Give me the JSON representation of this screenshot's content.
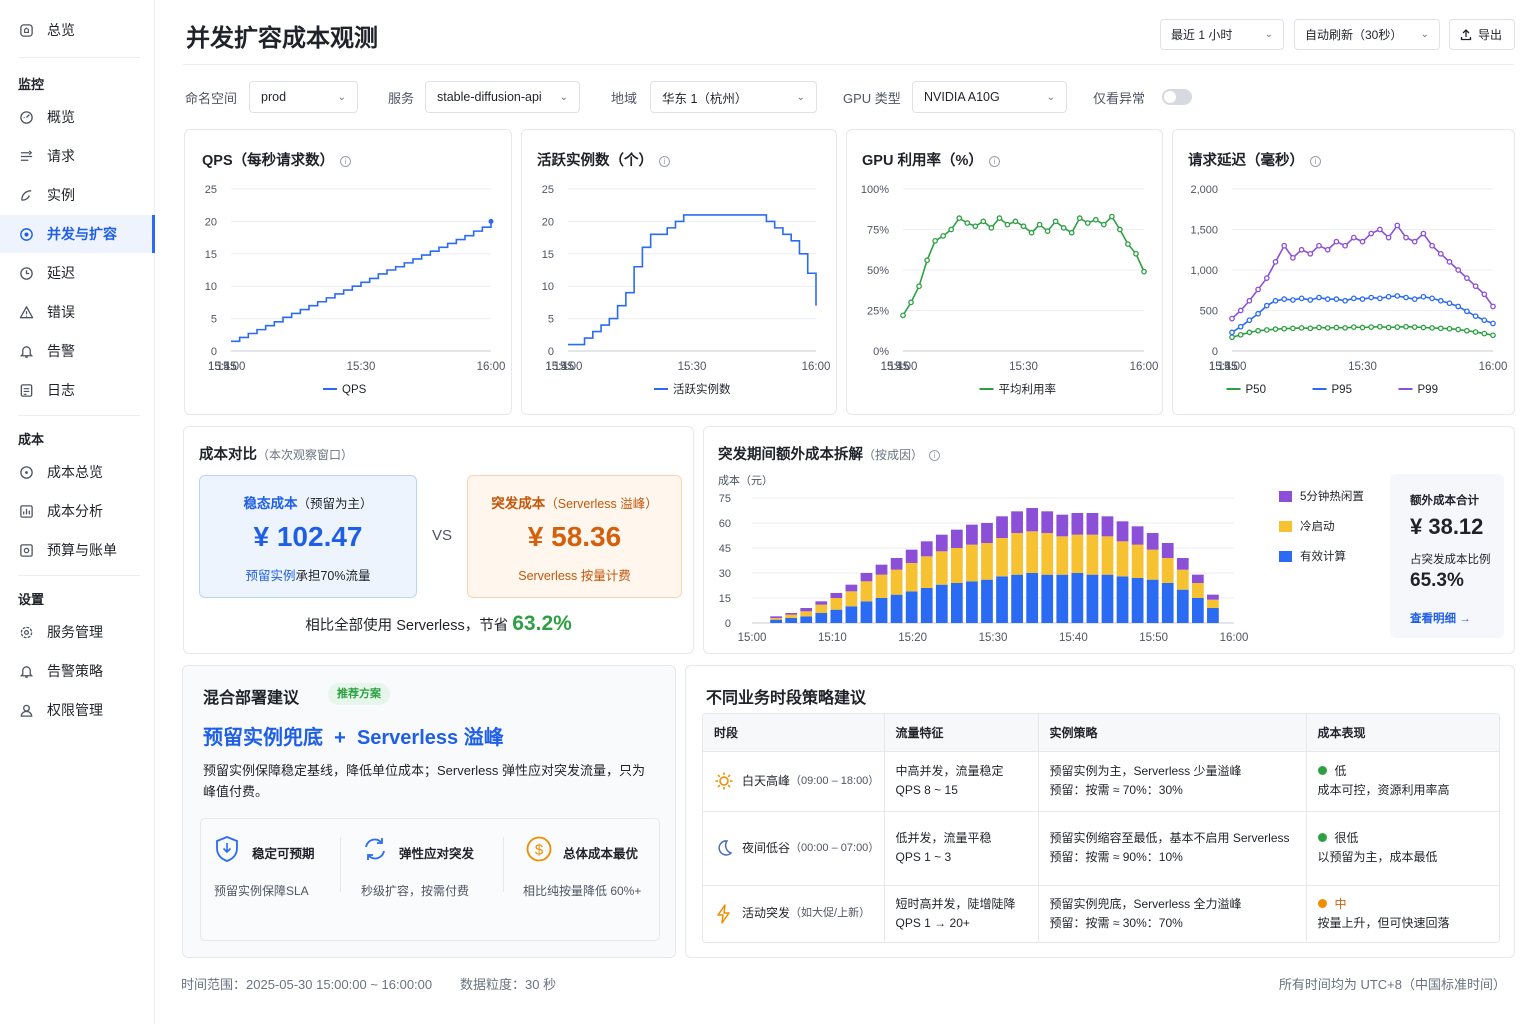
{
  "sidebar": {
    "top": {
      "label": "总览",
      "icon": "home-icon"
    },
    "sections": [
      {
        "title": "监控",
        "items": [
          {
            "label": "概览",
            "icon": "dashboard-icon"
          },
          {
            "label": "请求",
            "icon": "request-icon"
          },
          {
            "label": "实例",
            "icon": "instance-icon"
          },
          {
            "label": "并发与扩容",
            "icon": "scaling-icon",
            "active": true
          },
          {
            "label": "延迟",
            "icon": "clock-icon"
          },
          {
            "label": "错误",
            "icon": "warning-icon"
          },
          {
            "label": "告警",
            "icon": "bell-icon"
          },
          {
            "label": "日志",
            "icon": "log-icon"
          }
        ]
      },
      {
        "title": "成本",
        "items": [
          {
            "label": "成本总览",
            "icon": "cost-overview-icon"
          },
          {
            "label": "成本分析",
            "icon": "analysis-icon"
          },
          {
            "label": "预算与账单",
            "icon": "budget-icon"
          }
        ]
      },
      {
        "title": "设置",
        "items": [
          {
            "label": "服务管理",
            "icon": "gear-icon"
          },
          {
            "label": "告警策略",
            "icon": "bell-icon"
          },
          {
            "label": "权限管理",
            "icon": "user-icon"
          }
        ]
      }
    ]
  },
  "header": {
    "title": "并发扩容成本观测",
    "time_range": "最近 1 小时",
    "refresh": "自动刷新（30秒）",
    "export": "导出"
  },
  "filters": {
    "namespace_label": "命名空间",
    "namespace": "prod",
    "service_label": "服务",
    "service": "stable-diffusion-api",
    "region_label": "地域",
    "region": "华东 1（杭州）",
    "gpu_label": "GPU 类型",
    "gpu": "NVIDIA A10G",
    "anomaly_label": "仅看异常",
    "anomaly_on": false
  },
  "charts": {
    "qps": {
      "title": "QPS（每秒请求数）",
      "legend": "QPS"
    },
    "instances": {
      "title": "活跃实例数（个）",
      "legend": "活跃实例数"
    },
    "gpu": {
      "title": "GPU 利用率（%）",
      "legend": "平均利用率"
    },
    "latency": {
      "title": "请求延迟（毫秒）",
      "legend": [
        "P50",
        "P95",
        "P99"
      ]
    }
  },
  "chart_data": [
    {
      "type": "line",
      "title": "QPS（每秒请求数）",
      "x": [
        "15:00",
        "15:02",
        "15:04",
        "15:06",
        "15:08",
        "15:10",
        "15:12",
        "15:14",
        "15:16",
        "15:18",
        "15:20",
        "15:22",
        "15:24",
        "15:26",
        "15:28",
        "15:30",
        "15:32",
        "15:34",
        "15:36",
        "15:38",
        "15:40",
        "15:42",
        "15:44",
        "15:46",
        "15:48",
        "15:50",
        "15:52",
        "15:54",
        "15:56",
        "15:58",
        "16:00"
      ],
      "xticks": [
        "15:00",
        "15:15",
        "15:30",
        "15:45",
        "16:00"
      ],
      "ylim": [
        0,
        25
      ],
      "yticks": [
        0,
        5,
        10,
        15,
        20,
        25
      ],
      "series": [
        {
          "name": "QPS",
          "color": "#2b6bf3",
          "values": [
            1.5,
            2.1,
            2.7,
            3.3,
            3.9,
            4.5,
            5.2,
            5.8,
            6.4,
            7.0,
            7.6,
            8.2,
            8.8,
            9.4,
            10.0,
            10.6,
            11.2,
            11.9,
            12.5,
            13.0,
            13.6,
            14.2,
            14.8,
            15.4,
            16.0,
            16.6,
            17.2,
            17.8,
            18.5,
            19.1,
            20.0
          ]
        }
      ]
    },
    {
      "type": "line",
      "title": "活跃实例数（个）",
      "x": [
        "15:00",
        "15:02",
        "15:04",
        "15:06",
        "15:08",
        "15:10",
        "15:12",
        "15:14",
        "15:16",
        "15:18",
        "15:20",
        "15:22",
        "15:24",
        "15:26",
        "15:28",
        "15:30",
        "15:32",
        "15:34",
        "15:36",
        "15:38",
        "15:40",
        "15:42",
        "15:44",
        "15:46",
        "15:48",
        "15:50",
        "15:52",
        "15:54",
        "15:56",
        "15:58",
        "16:00"
      ],
      "xticks": [
        "15:00",
        "15:15",
        "15:30",
        "15:45",
        "16:00"
      ],
      "ylim": [
        0,
        25
      ],
      "yticks": [
        0,
        5,
        10,
        15,
        20,
        25
      ],
      "series": [
        {
          "name": "活跃实例数",
          "color": "#2b6bf3",
          "values": [
            1,
            1,
            2,
            3,
            4,
            5,
            7,
            9,
            13,
            16,
            18,
            18,
            19,
            20,
            21,
            21,
            21,
            21,
            21,
            21,
            21,
            21,
            21,
            21,
            20,
            19,
            18,
            17,
            15,
            12,
            7
          ]
        }
      ]
    },
    {
      "type": "line",
      "title": "GPU 利用率（%）",
      "x": [
        "15:00",
        "15:02",
        "15:04",
        "15:06",
        "15:08",
        "15:10",
        "15:12",
        "15:14",
        "15:16",
        "15:18",
        "15:20",
        "15:22",
        "15:24",
        "15:26",
        "15:28",
        "15:30",
        "15:32",
        "15:34",
        "15:36",
        "15:38",
        "15:40",
        "15:42",
        "15:44",
        "15:46",
        "15:48",
        "15:50",
        "15:52",
        "15:54",
        "15:56",
        "15:58",
        "16:00"
      ],
      "xticks": [
        "15:00",
        "15:15",
        "15:30",
        "15:45",
        "16:00"
      ],
      "ylim": [
        0,
        100
      ],
      "yticks": [
        "0%",
        "25%",
        "50%",
        "75%",
        "100%"
      ],
      "series": [
        {
          "name": "平均利用率",
          "color": "#2ea043",
          "values": [
            22,
            30,
            40,
            56,
            68,
            71,
            75,
            82,
            79,
            77,
            80,
            76,
            82,
            78,
            80,
            77,
            73,
            78,
            74,
            80,
            76,
            73,
            82,
            79,
            81,
            78,
            83,
            75,
            66,
            60,
            49
          ]
        }
      ]
    },
    {
      "type": "line",
      "title": "请求延迟（毫秒）",
      "x": [
        "15:00",
        "15:02",
        "15:04",
        "15:06",
        "15:08",
        "15:10",
        "15:12",
        "15:14",
        "15:16",
        "15:18",
        "15:20",
        "15:22",
        "15:24",
        "15:26",
        "15:28",
        "15:30",
        "15:32",
        "15:34",
        "15:36",
        "15:38",
        "15:40",
        "15:42",
        "15:44",
        "15:46",
        "15:48",
        "15:50",
        "15:52",
        "15:54",
        "15:56",
        "15:58",
        "16:00"
      ],
      "xticks": [
        "15:00",
        "15:15",
        "15:30",
        "15:45",
        "16:00"
      ],
      "ylim": [
        0,
        2000
      ],
      "yticks": [
        "0",
        "500",
        "1,000",
        "1,500",
        "2,000"
      ],
      "series": [
        {
          "name": "P50",
          "color": "#2ea043",
          "values": [
            170,
            200,
            230,
            250,
            260,
            270,
            275,
            280,
            285,
            280,
            290,
            285,
            290,
            285,
            295,
            290,
            295,
            300,
            290,
            295,
            300,
            295,
            290,
            285,
            280,
            275,
            265,
            250,
            235,
            215,
            195
          ]
        },
        {
          "name": "P95",
          "color": "#2b6bf3",
          "values": [
            230,
            300,
            380,
            460,
            560,
            620,
            640,
            630,
            650,
            630,
            660,
            640,
            640,
            620,
            650,
            640,
            660,
            650,
            670,
            680,
            660,
            640,
            670,
            650,
            620,
            590,
            550,
            490,
            430,
            380,
            340
          ]
        },
        {
          "name": "P99",
          "color": "#8b4fd8",
          "values": [
            400,
            500,
            620,
            760,
            900,
            1100,
            1300,
            1150,
            1250,
            1200,
            1300,
            1250,
            1350,
            1300,
            1400,
            1350,
            1450,
            1500,
            1400,
            1550,
            1400,
            1350,
            1450,
            1300,
            1200,
            1100,
            1000,
            900,
            800,
            700,
            550
          ]
        }
      ]
    },
    {
      "type": "bar",
      "stacked": true,
      "title": "突发期间额外成本拆解（按成因）",
      "ylabel": "成本（元）",
      "ylim": [
        0,
        75
      ],
      "yticks": [
        0,
        15,
        30,
        45,
        60,
        75
      ],
      "xticks": [
        "15:00",
        "15:10",
        "15:20",
        "15:30",
        "15:40",
        "15:50",
        "16:00"
      ],
      "categories": [
        "15:01",
        "15:03",
        "15:05",
        "15:07",
        "15:09",
        "15:11",
        "15:13",
        "15:15",
        "15:17",
        "15:19",
        "15:21",
        "15:23",
        "15:25",
        "15:27",
        "15:29",
        "15:31",
        "15:33",
        "15:35",
        "15:37",
        "15:39",
        "15:41",
        "15:43",
        "15:45",
        "15:47",
        "15:49",
        "15:51",
        "15:53",
        "15:55",
        "15:57",
        "15:59"
      ],
      "series": [
        {
          "name": "有效计算",
          "color": "#2b6bf3",
          "values": [
            2,
            3,
            4,
            6,
            8,
            10,
            13,
            15,
            17,
            19,
            21,
            23,
            24,
            25,
            26,
            28,
            29,
            30,
            29,
            29,
            30,
            29,
            29,
            28,
            27,
            26,
            24,
            20,
            15,
            9
          ]
        },
        {
          "name": "冷启动",
          "color": "#f7c232",
          "values": [
            1,
            2,
            3,
            5,
            7,
            9,
            12,
            14,
            15,
            17,
            19,
            20,
            21,
            22,
            22,
            23,
            25,
            25,
            25,
            23,
            23,
            24,
            23,
            21,
            20,
            18,
            15,
            12,
            9,
            5
          ]
        },
        {
          "name": "5分钟热闲置",
          "color": "#8b4fd8",
          "values": [
            1,
            1,
            2,
            2,
            3,
            4,
            5,
            6,
            7,
            8,
            9,
            10,
            11,
            12,
            12,
            13,
            13,
            14,
            13,
            13,
            13,
            13,
            12,
            12,
            11,
            10,
            9,
            7,
            5,
            3
          ]
        }
      ]
    }
  ],
  "compare": {
    "title": "成本对比",
    "subtitle": "（本次观察窗口）",
    "steady_title": "稳态成本",
    "steady_sub": "（预留为主）",
    "steady_value": "¥ 102.47",
    "steady_note_strong": "预留实例",
    "steady_note": "承担70%流量",
    "vs": "VS",
    "burst_title": "突发成本",
    "burst_sub": "（Serverless 溢峰）",
    "burst_value": "¥ 58.36",
    "burst_note": "Serverless 按量计费",
    "saving_text": "相比全部使用 Serverless，节省",
    "saving_value": "63.2%"
  },
  "breakdown": {
    "title": "突发期间额外成本拆解",
    "subtitle": "（按成因）",
    "ylabel": "成本（元）",
    "legend": [
      "5分钟热闲置",
      "冷启动",
      "有效计算"
    ],
    "total_label": "额外成本合计",
    "total_value": "¥ 38.12",
    "ratio_label": "占突发成本比例",
    "ratio_value": "65.3%",
    "detail_link": "查看明细 →"
  },
  "hybrid": {
    "title": "混合部署建议",
    "badge": "推荐方案",
    "headline_a": "预留实例兜底",
    "plus": "+",
    "headline_b": "Serverless 溢峰",
    "desc": "预留实例保障稳定基线，降低单位成本；Serverless 弹性应对突发流量，只为峰值付费。",
    "features": [
      {
        "title": "稳定可预期",
        "desc": "预留实例保障SLA",
        "icon": "shield-icon"
      },
      {
        "title": "弹性应对突发",
        "desc": "秒级扩容，按需付费",
        "icon": "refresh-icon"
      },
      {
        "title": "总体成本最优",
        "desc": "相比纯按量降低 60%+",
        "icon": "coin-icon"
      }
    ]
  },
  "strategy": {
    "title": "不同业务时段策略建议",
    "headers": [
      "时段",
      "流量特征",
      "实例策略",
      "成本表现"
    ],
    "rows": [
      {
        "icon": "sun-icon",
        "period": "白天高峰",
        "time": "（09:00 – 18:00）",
        "traffic": "中高并发，流量稳定",
        "traffic2": "QPS 8 ~ 15",
        "strategy": "预留实例为主，Serverless 少量溢峰",
        "ratio": "预留：按需 ≈ 70%：30%",
        "level": "低",
        "level_color": "#2ea043",
        "cost": "成本可控，资源利用率高"
      },
      {
        "icon": "moon-icon",
        "period": "夜间低谷",
        "time": "（00:00 – 07:00）",
        "traffic": "低并发，流量平稳",
        "traffic2": "QPS 1 ~ 3",
        "strategy": "预留实例缩容至最低，基本不启用 Serverless",
        "ratio": "预留：按需 ≈ 90%：10%",
        "level": "很低",
        "level_color": "#2ea043",
        "cost": "以预留为主，成本最低"
      },
      {
        "icon": "lightning-icon",
        "period": "活动突发",
        "time": "（如大促/上新）",
        "traffic": "短时高并发，陡增陡降",
        "traffic2": "QPS 1 → 20+",
        "strategy": "预留实例兜底，Serverless 全力溢峰",
        "ratio": "预留：按需 ≈ 30%：70%",
        "level": "中",
        "level_color": "#f08c00",
        "cost": "按量上升，但可快速回落"
      }
    ]
  },
  "footer": {
    "range": "时间范围：2025-05-30 15:00:00 ~ 16:00:00",
    "granularity": "数据粒度：30 秒",
    "timezone": "所有时间均为 UTC+8（中国标准时间）"
  }
}
